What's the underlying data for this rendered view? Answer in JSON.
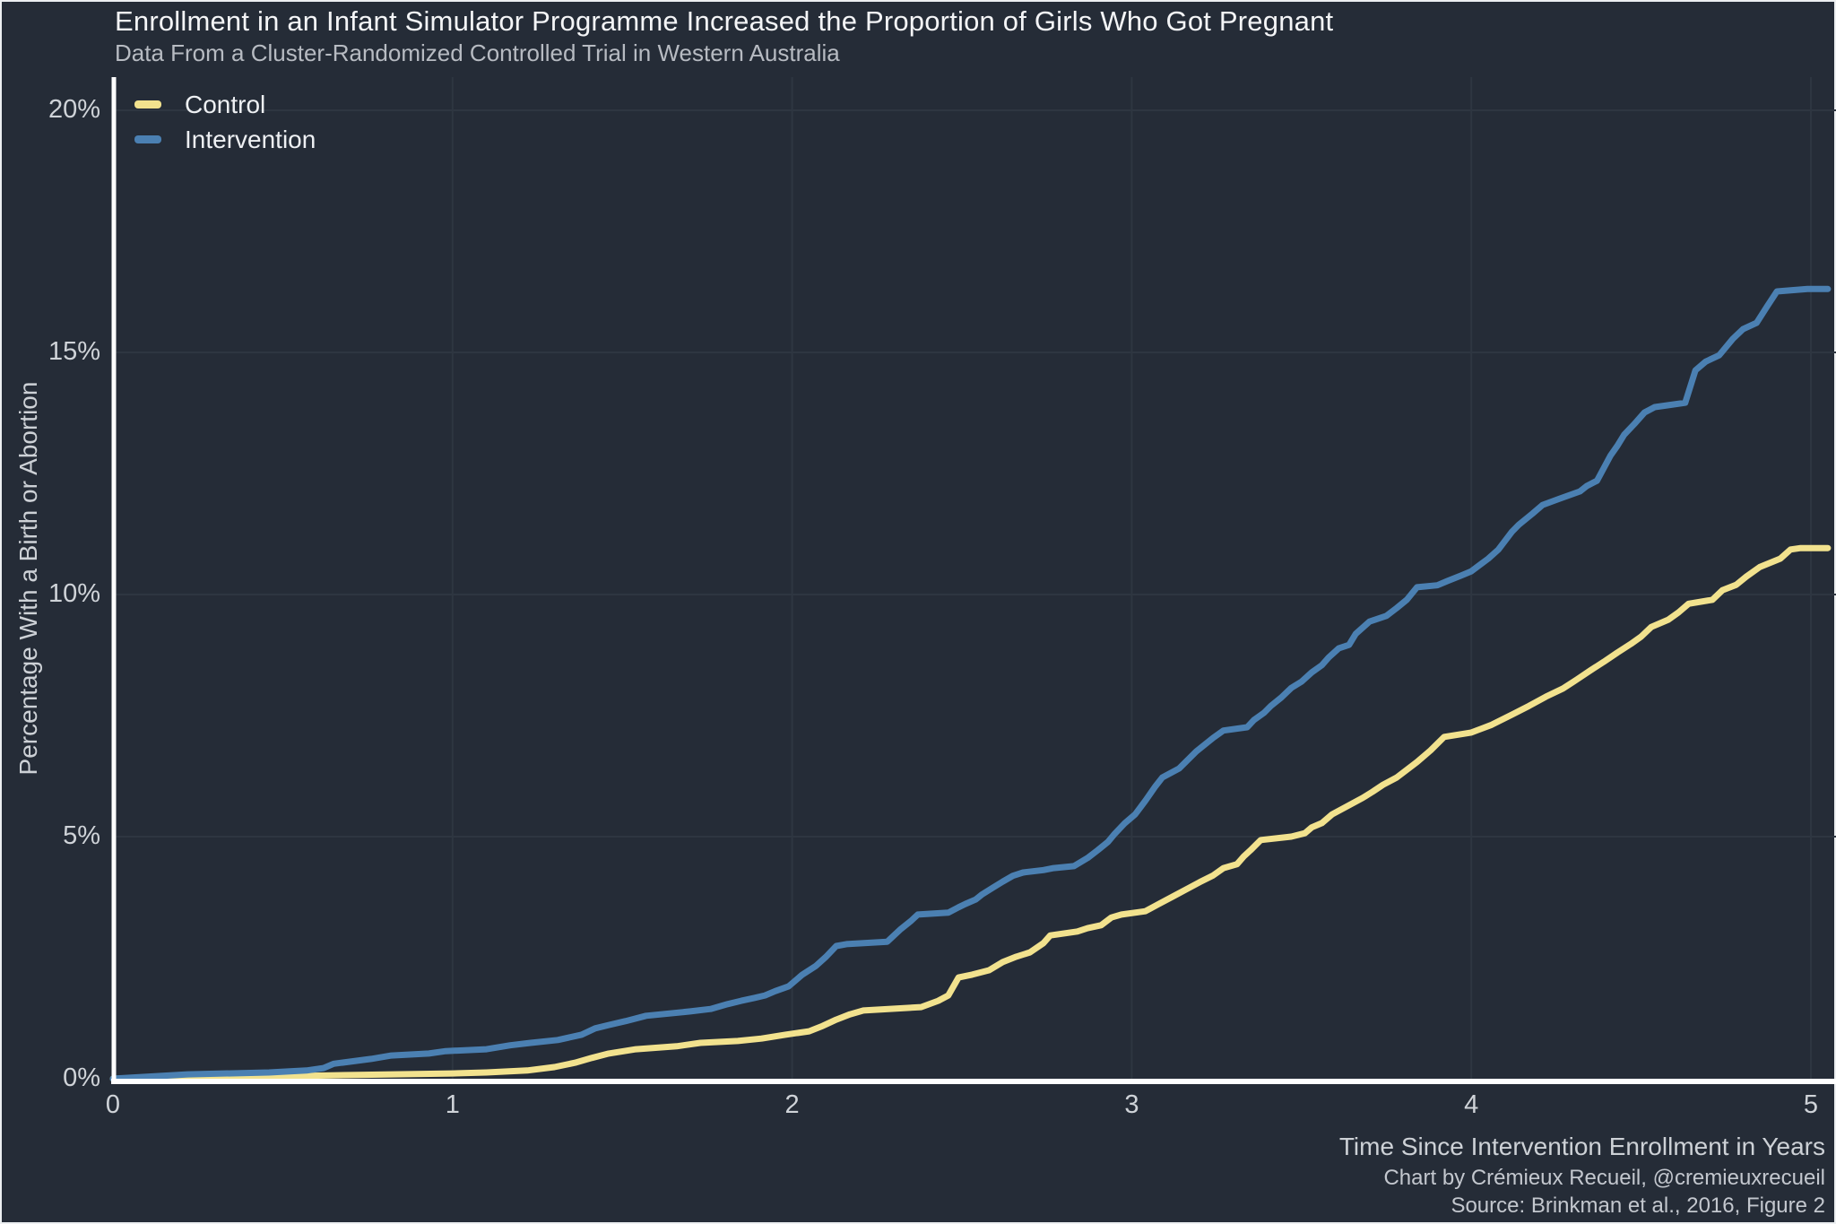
{
  "header": {
    "title": "Enrollment in an Infant Simulator Programme Increased the Proportion of Girls Who Got Pregnant",
    "subtitle": "Data From a Cluster-Randomized Controlled Trial in Western Australia"
  },
  "y_axis": {
    "label": "Percentage With a Birth or Abortion",
    "ticks": [
      "0%",
      "5%",
      "10%",
      "15%",
      "20%"
    ],
    "tick_values": [
      0,
      5,
      10,
      15,
      20
    ]
  },
  "x_axis": {
    "label": "Time Since Intervention Enrollment in Years",
    "ticks": [
      "0",
      "1",
      "2",
      "3",
      "4",
      "5"
    ],
    "tick_values": [
      0,
      1,
      2,
      3,
      4,
      5
    ]
  },
  "credits": {
    "line1": "Chart by Crémieux Recueil, @cremieuxrecueil",
    "line2": "Source: Brinkman et al., 2016, Figure 2"
  },
  "colors": {
    "background": "#252C37",
    "control": "#F2E28E",
    "intervention": "#4B80B2",
    "gridline": "#2E3641",
    "axis_line": "#FFFFFF",
    "title_text": "#F4F5F7",
    "subtitle_text": "#B7BBC2",
    "tick_text": "#CFD3D8"
  },
  "chart_data": {
    "type": "line",
    "title": "Enrollment in an Infant Simulator Programme Increased the Proportion of Girls Who Got Pregnant",
    "subtitle": "Data From a Cluster-Randomized Controlled Trial in Western Australia",
    "xlabel": "Time Since Intervention Enrollment in Years",
    "ylabel": "Percentage With a Birth or Abortion",
    "xlim": [
      0,
      5.05
    ],
    "ylim": [
      0,
      20
    ],
    "grid": true,
    "legend_position": "top-left",
    "units": "percent cumulative incidence of a birth or abortion",
    "series": [
      {
        "name": "Control",
        "color": "#F2E28E",
        "points": [
          [
            0,
            0
          ],
          [
            0.5,
            0.05
          ],
          [
            0.72,
            0.08
          ],
          [
            1.0,
            0.11
          ],
          [
            1.1,
            0.13
          ],
          [
            1.22,
            0.17
          ],
          [
            1.3,
            0.24
          ],
          [
            1.36,
            0.33
          ],
          [
            1.41,
            0.43
          ],
          [
            1.46,
            0.52
          ],
          [
            1.54,
            0.61
          ],
          [
            1.66,
            0.67
          ],
          [
            1.73,
            0.74
          ],
          [
            1.84,
            0.78
          ],
          [
            1.91,
            0.83
          ],
          [
            1.98,
            0.91
          ],
          [
            2.05,
            0.98
          ],
          [
            2.09,
            1.09
          ],
          [
            2.13,
            1.22
          ],
          [
            2.17,
            1.33
          ],
          [
            2.21,
            1.41
          ],
          [
            2.38,
            1.48
          ],
          [
            2.43,
            1.61
          ],
          [
            2.46,
            1.72
          ],
          [
            2.49,
            2.09
          ],
          [
            2.53,
            2.15
          ],
          [
            2.58,
            2.24
          ],
          [
            2.62,
            2.41
          ],
          [
            2.66,
            2.52
          ],
          [
            2.7,
            2.61
          ],
          [
            2.74,
            2.8
          ],
          [
            2.76,
            2.96
          ],
          [
            2.84,
            3.04
          ],
          [
            2.87,
            3.11
          ],
          [
            2.91,
            3.17
          ],
          [
            2.94,
            3.33
          ],
          [
            2.97,
            3.39
          ],
          [
            3.04,
            3.46
          ],
          [
            3.08,
            3.61
          ],
          [
            3.12,
            3.76
          ],
          [
            3.16,
            3.91
          ],
          [
            3.2,
            4.06
          ],
          [
            3.24,
            4.2
          ],
          [
            3.27,
            4.35
          ],
          [
            3.31,
            4.43
          ],
          [
            3.33,
            4.59
          ],
          [
            3.35,
            4.72
          ],
          [
            3.38,
            4.93
          ],
          [
            3.47,
            5.0
          ],
          [
            3.51,
            5.07
          ],
          [
            3.53,
            5.19
          ],
          [
            3.56,
            5.28
          ],
          [
            3.59,
            5.46
          ],
          [
            3.63,
            5.61
          ],
          [
            3.68,
            5.8
          ],
          [
            3.71,
            5.93
          ],
          [
            3.74,
            6.07
          ],
          [
            3.78,
            6.22
          ],
          [
            3.84,
            6.54
          ],
          [
            3.88,
            6.78
          ],
          [
            3.92,
            7.06
          ],
          [
            4.0,
            7.15
          ],
          [
            4.06,
            7.31
          ],
          [
            4.12,
            7.52
          ],
          [
            4.17,
            7.7
          ],
          [
            4.22,
            7.89
          ],
          [
            4.27,
            8.06
          ],
          [
            4.31,
            8.24
          ],
          [
            4.35,
            8.43
          ],
          [
            4.39,
            8.61
          ],
          [
            4.43,
            8.8
          ],
          [
            4.47,
            8.98
          ],
          [
            4.5,
            9.13
          ],
          [
            4.53,
            9.33
          ],
          [
            4.58,
            9.48
          ],
          [
            4.61,
            9.63
          ],
          [
            4.64,
            9.81
          ],
          [
            4.71,
            9.89
          ],
          [
            4.74,
            10.09
          ],
          [
            4.78,
            10.2
          ],
          [
            4.81,
            10.37
          ],
          [
            4.85,
            10.57
          ],
          [
            4.91,
            10.74
          ],
          [
            4.94,
            10.93
          ],
          [
            4.97,
            10.96
          ],
          [
            5.05,
            10.96
          ]
        ]
      },
      {
        "name": "Intervention",
        "color": "#4B80B2",
        "points": [
          [
            0,
            0
          ],
          [
            0.22,
            0.09
          ],
          [
            0.46,
            0.13
          ],
          [
            0.57,
            0.17
          ],
          [
            0.62,
            0.22
          ],
          [
            0.65,
            0.31
          ],
          [
            0.76,
            0.41
          ],
          [
            0.82,
            0.48
          ],
          [
            0.93,
            0.52
          ],
          [
            0.98,
            0.57
          ],
          [
            1.1,
            0.61
          ],
          [
            1.17,
            0.69
          ],
          [
            1.23,
            0.74
          ],
          [
            1.31,
            0.8
          ],
          [
            1.38,
            0.91
          ],
          [
            1.42,
            1.04
          ],
          [
            1.46,
            1.11
          ],
          [
            1.51,
            1.19
          ],
          [
            1.57,
            1.3
          ],
          [
            1.7,
            1.39
          ],
          [
            1.76,
            1.44
          ],
          [
            1.81,
            1.54
          ],
          [
            1.85,
            1.61
          ],
          [
            1.89,
            1.67
          ],
          [
            1.92,
            1.72
          ],
          [
            1.95,
            1.81
          ],
          [
            1.99,
            1.91
          ],
          [
            2.03,
            2.15
          ],
          [
            2.07,
            2.33
          ],
          [
            2.1,
            2.52
          ],
          [
            2.13,
            2.74
          ],
          [
            2.16,
            2.78
          ],
          [
            2.28,
            2.83
          ],
          [
            2.32,
            3.09
          ],
          [
            2.35,
            3.26
          ],
          [
            2.37,
            3.39
          ],
          [
            2.46,
            3.43
          ],
          [
            2.49,
            3.54
          ],
          [
            2.51,
            3.61
          ],
          [
            2.54,
            3.7
          ],
          [
            2.56,
            3.81
          ],
          [
            2.59,
            3.94
          ],
          [
            2.62,
            4.07
          ],
          [
            2.65,
            4.19
          ],
          [
            2.68,
            4.26
          ],
          [
            2.74,
            4.31
          ],
          [
            2.77,
            4.35
          ],
          [
            2.83,
            4.39
          ],
          [
            2.87,
            4.56
          ],
          [
            2.9,
            4.72
          ],
          [
            2.93,
            4.89
          ],
          [
            2.95,
            5.06
          ],
          [
            2.98,
            5.28
          ],
          [
            3.01,
            5.46
          ],
          [
            3.04,
            5.74
          ],
          [
            3.07,
            6.04
          ],
          [
            3.09,
            6.22
          ],
          [
            3.14,
            6.41
          ],
          [
            3.19,
            6.76
          ],
          [
            3.24,
            7.04
          ],
          [
            3.27,
            7.19
          ],
          [
            3.34,
            7.26
          ],
          [
            3.36,
            7.41
          ],
          [
            3.39,
            7.56
          ],
          [
            3.41,
            7.7
          ],
          [
            3.44,
            7.87
          ],
          [
            3.47,
            8.07
          ],
          [
            3.5,
            8.2
          ],
          [
            3.53,
            8.39
          ],
          [
            3.56,
            8.54
          ],
          [
            3.58,
            8.7
          ],
          [
            3.61,
            8.89
          ],
          [
            3.64,
            8.96
          ],
          [
            3.66,
            9.19
          ],
          [
            3.7,
            9.44
          ],
          [
            3.75,
            9.56
          ],
          [
            3.78,
            9.72
          ],
          [
            3.81,
            9.89
          ],
          [
            3.84,
            10.15
          ],
          [
            3.9,
            10.19
          ],
          [
            3.93,
            10.28
          ],
          [
            3.97,
            10.39
          ],
          [
            4.0,
            10.48
          ],
          [
            4.05,
            10.74
          ],
          [
            4.08,
            10.93
          ],
          [
            4.12,
            11.3
          ],
          [
            4.14,
            11.44
          ],
          [
            4.18,
            11.67
          ],
          [
            4.21,
            11.85
          ],
          [
            4.26,
            11.98
          ],
          [
            4.32,
            12.13
          ],
          [
            4.34,
            12.24
          ],
          [
            4.37,
            12.35
          ],
          [
            4.41,
            12.87
          ],
          [
            4.43,
            13.07
          ],
          [
            4.45,
            13.3
          ],
          [
            4.48,
            13.52
          ],
          [
            4.51,
            13.76
          ],
          [
            4.54,
            13.87
          ],
          [
            4.58,
            13.91
          ],
          [
            4.63,
            13.96
          ],
          [
            4.66,
            14.63
          ],
          [
            4.69,
            14.81
          ],
          [
            4.73,
            14.94
          ],
          [
            4.77,
            15.28
          ],
          [
            4.8,
            15.48
          ],
          [
            4.84,
            15.61
          ],
          [
            4.87,
            15.94
          ],
          [
            4.9,
            16.26
          ],
          [
            4.99,
            16.31
          ],
          [
            5.05,
            16.31
          ]
        ]
      }
    ]
  }
}
